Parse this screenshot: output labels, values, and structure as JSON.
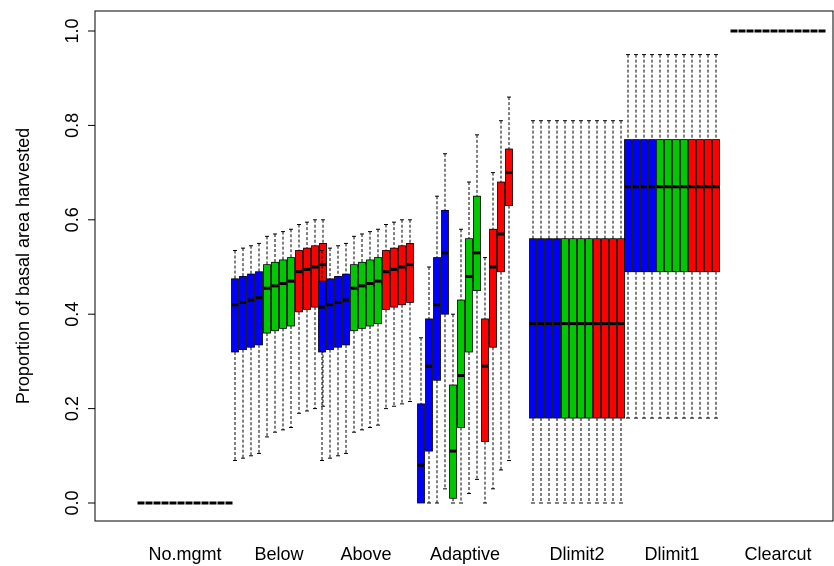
{
  "chart_data": {
    "type": "boxplot",
    "title": "",
    "ylabel": "Proportion of basal area harvested",
    "ylim": [
      -0.04,
      1.04
    ],
    "yticks": [
      0.0,
      0.2,
      0.4,
      0.6,
      0.8,
      1.0
    ],
    "ytick_labels": [
      "0.0",
      "0.2",
      "0.4",
      "0.6",
      "0.8",
      "1.0"
    ],
    "grid": false,
    "colors": {
      "blue": "#0000ff",
      "green": "#00c800",
      "red": "#ff0000",
      "black": "#000000"
    },
    "categories": [
      "No.mgmt",
      "Below",
      "Above",
      "Adaptive",
      "Dlimit2",
      "Dlimit1",
      "Clearcut"
    ],
    "groups": [
      {
        "name": "No.mgmt",
        "colors": [
          "black",
          "black",
          "black",
          "black",
          "black",
          "black",
          "black",
          "black",
          "black",
          "black",
          "black",
          "black"
        ],
        "boxes": [
          [
            0,
            0,
            0,
            0,
            0
          ],
          [
            0,
            0,
            0,
            0,
            0
          ],
          [
            0,
            0,
            0,
            0,
            0
          ],
          [
            0,
            0,
            0,
            0,
            0
          ],
          [
            0,
            0,
            0,
            0,
            0
          ],
          [
            0,
            0,
            0,
            0,
            0
          ],
          [
            0,
            0,
            0,
            0,
            0
          ],
          [
            0,
            0,
            0,
            0,
            0
          ],
          [
            0,
            0,
            0,
            0,
            0
          ],
          [
            0,
            0,
            0,
            0,
            0
          ],
          [
            0,
            0,
            0,
            0,
            0
          ],
          [
            0,
            0,
            0,
            0,
            0
          ]
        ]
      },
      {
        "name": "Below",
        "colors": [
          "blue",
          "blue",
          "blue",
          "blue",
          "green",
          "green",
          "green",
          "green",
          "red",
          "red",
          "red",
          "red"
        ],
        "boxes": [
          [
            0.09,
            0.32,
            0.42,
            0.475,
            0.535
          ],
          [
            0.095,
            0.325,
            0.425,
            0.48,
            0.54
          ],
          [
            0.1,
            0.33,
            0.43,
            0.485,
            0.545
          ],
          [
            0.105,
            0.335,
            0.435,
            0.49,
            0.55
          ],
          [
            0.14,
            0.36,
            0.455,
            0.505,
            0.565
          ],
          [
            0.15,
            0.365,
            0.46,
            0.51,
            0.57
          ],
          [
            0.155,
            0.37,
            0.465,
            0.515,
            0.575
          ],
          [
            0.16,
            0.375,
            0.47,
            0.52,
            0.58
          ],
          [
            0.19,
            0.405,
            0.49,
            0.535,
            0.59
          ],
          [
            0.195,
            0.41,
            0.495,
            0.54,
            0.595
          ],
          [
            0.2,
            0.415,
            0.5,
            0.545,
            0.6
          ],
          [
            0.205,
            0.42,
            0.505,
            0.55,
            0.6
          ]
        ]
      },
      {
        "name": "Above",
        "colors": [
          "blue",
          "blue",
          "blue",
          "blue",
          "green",
          "green",
          "green",
          "green",
          "red",
          "red",
          "red",
          "red"
        ],
        "boxes": [
          [
            0.09,
            0.32,
            0.415,
            0.47,
            0.535
          ],
          [
            0.095,
            0.325,
            0.42,
            0.475,
            0.54
          ],
          [
            0.1,
            0.33,
            0.425,
            0.48,
            0.545
          ],
          [
            0.105,
            0.335,
            0.43,
            0.485,
            0.55
          ],
          [
            0.15,
            0.365,
            0.455,
            0.505,
            0.565
          ],
          [
            0.155,
            0.37,
            0.46,
            0.51,
            0.57
          ],
          [
            0.16,
            0.375,
            0.465,
            0.515,
            0.575
          ],
          [
            0.165,
            0.38,
            0.47,
            0.52,
            0.58
          ],
          [
            0.2,
            0.41,
            0.49,
            0.535,
            0.59
          ],
          [
            0.205,
            0.415,
            0.495,
            0.54,
            0.595
          ],
          [
            0.21,
            0.42,
            0.5,
            0.545,
            0.6
          ],
          [
            0.215,
            0.425,
            0.505,
            0.55,
            0.6
          ]
        ]
      },
      {
        "name": "Adaptive",
        "colors": [
          "blue",
          "blue",
          "blue",
          "blue",
          "green",
          "green",
          "green",
          "green",
          "red",
          "red",
          "red",
          "red"
        ],
        "boxes": [
          [
            0,
            0,
            0.08,
            0.21,
            0.35
          ],
          [
            0,
            0.11,
            0.29,
            0.39,
            0.5
          ],
          [
            0,
            0.26,
            0.42,
            0.52,
            0.65
          ],
          [
            0.03,
            0.4,
            0.53,
            0.62,
            0.74
          ],
          [
            0,
            0.01,
            0.11,
            0.25,
            0.4
          ],
          [
            0,
            0.16,
            0.27,
            0.43,
            0.58
          ],
          [
            0.02,
            0.32,
            0.48,
            0.56,
            0.68
          ],
          [
            0.05,
            0.45,
            0.53,
            0.65,
            0.78
          ],
          [
            0,
            0.13,
            0.29,
            0.39,
            0.52
          ],
          [
            0.03,
            0.33,
            0.5,
            0.58,
            0.7
          ],
          [
            0.07,
            0.49,
            0.57,
            0.68,
            0.81
          ],
          [
            0.09,
            0.63,
            0.7,
            0.75,
            0.86
          ]
        ]
      },
      {
        "name": "Dlimit2",
        "colors": [
          "blue",
          "blue",
          "blue",
          "blue",
          "green",
          "green",
          "green",
          "green",
          "red",
          "red",
          "red",
          "red"
        ],
        "boxes": [
          [
            0,
            0.18,
            0.38,
            0.56,
            0.81
          ],
          [
            0,
            0.18,
            0.38,
            0.56,
            0.81
          ],
          [
            0,
            0.18,
            0.38,
            0.56,
            0.81
          ],
          [
            0,
            0.18,
            0.38,
            0.56,
            0.81
          ],
          [
            0,
            0.18,
            0.38,
            0.56,
            0.81
          ],
          [
            0,
            0.18,
            0.38,
            0.56,
            0.81
          ],
          [
            0,
            0.18,
            0.38,
            0.56,
            0.81
          ],
          [
            0,
            0.18,
            0.38,
            0.56,
            0.81
          ],
          [
            0,
            0.18,
            0.38,
            0.56,
            0.81
          ],
          [
            0,
            0.18,
            0.38,
            0.56,
            0.81
          ],
          [
            0,
            0.18,
            0.38,
            0.56,
            0.81
          ],
          [
            0,
            0.18,
            0.38,
            0.56,
            0.81
          ]
        ]
      },
      {
        "name": "Dlimit1",
        "colors": [
          "blue",
          "blue",
          "blue",
          "blue",
          "green",
          "green",
          "green",
          "green",
          "red",
          "red",
          "red",
          "red"
        ],
        "boxes": [
          [
            0.18,
            0.49,
            0.67,
            0.77,
            0.95
          ],
          [
            0.18,
            0.49,
            0.67,
            0.77,
            0.95
          ],
          [
            0.18,
            0.49,
            0.67,
            0.77,
            0.95
          ],
          [
            0.18,
            0.49,
            0.67,
            0.77,
            0.95
          ],
          [
            0.18,
            0.49,
            0.67,
            0.77,
            0.95
          ],
          [
            0.18,
            0.49,
            0.67,
            0.77,
            0.95
          ],
          [
            0.18,
            0.49,
            0.67,
            0.77,
            0.95
          ],
          [
            0.18,
            0.49,
            0.67,
            0.77,
            0.95
          ],
          [
            0.18,
            0.49,
            0.67,
            0.77,
            0.95
          ],
          [
            0.18,
            0.49,
            0.67,
            0.77,
            0.95
          ],
          [
            0.18,
            0.49,
            0.67,
            0.77,
            0.95
          ],
          [
            0.18,
            0.49,
            0.67,
            0.77,
            0.95
          ]
        ]
      },
      {
        "name": "Clearcut",
        "colors": [
          "black",
          "black",
          "black",
          "black",
          "black",
          "black",
          "black",
          "black",
          "black",
          "black",
          "black",
          "black"
        ],
        "boxes": [
          [
            1,
            1,
            1,
            1,
            1
          ],
          [
            1,
            1,
            1,
            1,
            1
          ],
          [
            1,
            1,
            1,
            1,
            1
          ],
          [
            1,
            1,
            1,
            1,
            1
          ],
          [
            1,
            1,
            1,
            1,
            1
          ],
          [
            1,
            1,
            1,
            1,
            1
          ],
          [
            1,
            1,
            1,
            1,
            1
          ],
          [
            1,
            1,
            1,
            1,
            1
          ],
          [
            1,
            1,
            1,
            1,
            1
          ],
          [
            1,
            1,
            1,
            1,
            1
          ],
          [
            1,
            1,
            1,
            1,
            1
          ],
          [
            1,
            1,
            1,
            1,
            1
          ]
        ]
      }
    ]
  }
}
